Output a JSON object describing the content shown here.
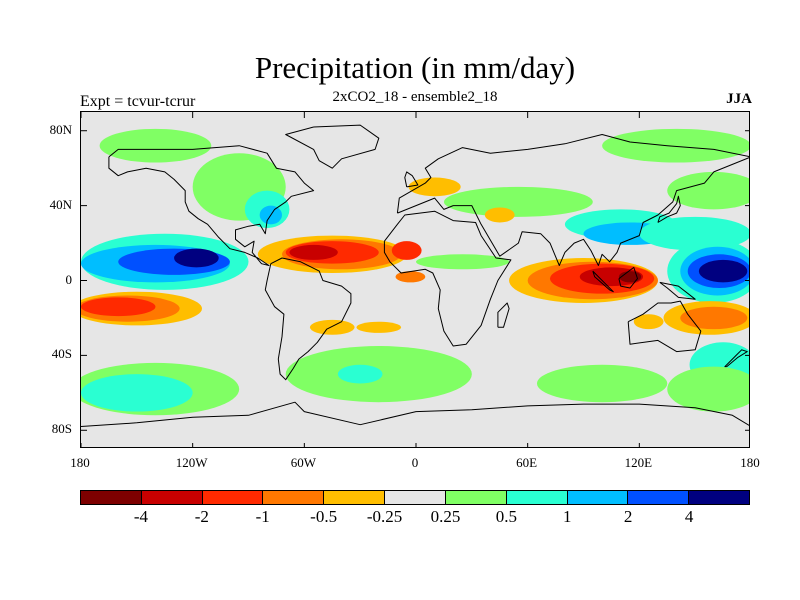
{
  "title": "Precipitation (in mm/day)",
  "subtitle": "2xCO2_18 - ensemble2_18",
  "left_label": "Expt = tcvur-tcrur",
  "season_label": "JJA",
  "y_axis": {
    "ticks": [
      "80N",
      "40N",
      "0",
      "40S",
      "80S"
    ],
    "values": [
      80,
      40,
      0,
      -40,
      -80
    ],
    "range": [
      -90,
      90
    ]
  },
  "x_axis": {
    "ticks": [
      "180",
      "120W",
      "60W",
      "0",
      "60E",
      "120E",
      "180"
    ],
    "values": [
      -180,
      -120,
      -60,
      0,
      60,
      120,
      180
    ],
    "range": [
      -180,
      180
    ]
  },
  "legend": {
    "colors": [
      "#7d0000",
      "#c80000",
      "#ff2a00",
      "#ff7800",
      "#ffbe00",
      "#e6e6e6",
      "#80ff64",
      "#2affd2",
      "#00beff",
      "#0050ff",
      "#000080"
    ],
    "labels": [
      "-4",
      "-2",
      "-1",
      "-0.5",
      "-0.25",
      "0.25",
      "0.5",
      "1",
      "2",
      "4"
    ],
    "label_values": [
      -4,
      -2,
      -1,
      -0.5,
      -0.25,
      0.25,
      0.5,
      1,
      2,
      4
    ]
  },
  "colors": {
    "background": "#e6e6e6",
    "coast": "#000000"
  },
  "regions": [
    {
      "name": "arctic-green-band",
      "lon": -140,
      "lat": 72,
      "rlon": 30,
      "rlat": 9,
      "color": "#80ff64"
    },
    {
      "name": "arctic-green-band-east",
      "lon": 140,
      "lat": 72,
      "rlon": 40,
      "rlat": 9,
      "color": "#80ff64"
    },
    {
      "name": "north-pacific-green",
      "lon": 160,
      "lat": 48,
      "rlon": 25,
      "rlat": 10,
      "color": "#80ff64"
    },
    {
      "name": "north-america-green",
      "lon": -95,
      "lat": 50,
      "rlon": 25,
      "rlat": 18,
      "color": "#80ff64"
    },
    {
      "name": "north-atlantic-cyan",
      "lon": -80,
      "lat": 38,
      "rlon": 12,
      "rlat": 10,
      "color": "#2affd2"
    },
    {
      "name": "north-atlantic-blue",
      "lon": -78,
      "lat": 35,
      "rlon": 6,
      "rlat": 5,
      "color": "#00beff"
    },
    {
      "name": "mideast-asia-green",
      "lon": 55,
      "lat": 42,
      "rlon": 40,
      "rlat": 8,
      "color": "#80ff64"
    },
    {
      "name": "europe-orange",
      "lon": 10,
      "lat": 50,
      "rlon": 14,
      "rlat": 5,
      "color": "#ffbe00"
    },
    {
      "name": "arabia-orange",
      "lon": 45,
      "lat": 35,
      "rlon": 8,
      "rlat": 4,
      "color": "#ffbe00"
    },
    {
      "name": "east-asia-cyan",
      "lon": 110,
      "lat": 30,
      "rlon": 30,
      "rlat": 8,
      "color": "#2affd2"
    },
    {
      "name": "east-asia-blue",
      "lon": 115,
      "lat": 25,
      "rlon": 25,
      "rlat": 6,
      "color": "#00beff"
    },
    {
      "name": "nw-pacific-cyan",
      "lon": 150,
      "lat": 25,
      "rlon": 30,
      "rlat": 9,
      "color": "#2affd2"
    },
    {
      "name": "pacific-itcz-cyan",
      "lon": -135,
      "lat": 10,
      "rlon": 45,
      "rlat": 15,
      "color": "#2affd2"
    },
    {
      "name": "pacific-itcz-blue",
      "lon": -140,
      "lat": 9,
      "rlon": 40,
      "rlat": 10,
      "color": "#00beff"
    },
    {
      "name": "pacific-itcz-mid",
      "lon": -130,
      "lat": 10,
      "rlon": 30,
      "rlat": 7,
      "color": "#0050ff"
    },
    {
      "name": "pacific-itcz-core",
      "lon": -118,
      "lat": 12,
      "rlon": 12,
      "rlat": 5,
      "color": "#000080"
    },
    {
      "name": "w-pacific-cyan",
      "lon": 160,
      "lat": 5,
      "rlon": 25,
      "rlat": 17,
      "color": "#2affd2"
    },
    {
      "name": "w-pacific-blue",
      "lon": 162,
      "lat": 5,
      "rlon": 20,
      "rlat": 13,
      "color": "#00beff"
    },
    {
      "name": "w-pacific-mid",
      "lon": 163,
      "lat": 5,
      "rlon": 17,
      "rlat": 9,
      "color": "#0050ff"
    },
    {
      "name": "w-pacific-core",
      "lon": 165,
      "lat": 5,
      "rlon": 13,
      "rlat": 6,
      "color": "#000080"
    },
    {
      "name": "atlantic-itcz-orange",
      "lon": -45,
      "lat": 14,
      "rlon": 40,
      "rlat": 10,
      "color": "#ffbe00"
    },
    {
      "name": "atlantic-itcz-orange2",
      "lon": -40,
      "lat": 14,
      "rlon": 32,
      "rlat": 8,
      "color": "#ff7800"
    },
    {
      "name": "atlantic-itcz-red",
      "lon": -45,
      "lat": 15,
      "rlon": 25,
      "rlat": 6,
      "color": "#ff2a00"
    },
    {
      "name": "atlantic-itcz-core",
      "lon": -55,
      "lat": 15,
      "rlon": 13,
      "rlat": 4,
      "color": "#c80000"
    },
    {
      "name": "west-africa-red",
      "lon": -5,
      "lat": 16,
      "rlon": 8,
      "rlat": 5,
      "color": "#ff2a00"
    },
    {
      "name": "gulf-guinea-orange",
      "lon": -3,
      "lat": 2,
      "rlon": 8,
      "rlat": 3,
      "color": "#ff7800"
    },
    {
      "name": "africa-green",
      "lon": 25,
      "lat": 10,
      "rlon": 25,
      "rlat": 4,
      "color": "#80ff64"
    },
    {
      "name": "indian-ocean-orange",
      "lon": 90,
      "lat": 0,
      "rlon": 40,
      "rlat": 12,
      "color": "#ffbe00"
    },
    {
      "name": "indian-ocean-orange2",
      "lon": 95,
      "lat": 0,
      "rlon": 35,
      "rlat": 10,
      "color": "#ff7800"
    },
    {
      "name": "indian-ocean-red",
      "lon": 100,
      "lat": 1,
      "rlon": 28,
      "rlat": 8,
      "color": "#ff2a00"
    },
    {
      "name": "indian-ocean-core",
      "lon": 105,
      "lat": 2,
      "rlon": 17,
      "rlat": 5,
      "color": "#c80000"
    },
    {
      "name": "maritime-core",
      "lon": 115,
      "lat": 2,
      "rlon": 6,
      "rlat": 3,
      "color": "#7d0000"
    },
    {
      "name": "sw-pacific-orange",
      "lon": 158,
      "lat": -20,
      "rlon": 25,
      "rlat": 9,
      "color": "#ffbe00"
    },
    {
      "name": "sw-pacific-red",
      "lon": 160,
      "lat": -20,
      "rlon": 18,
      "rlat": 6,
      "color": "#ff7800"
    },
    {
      "name": "australia-orange",
      "lon": 125,
      "lat": -22,
      "rlon": 8,
      "rlat": 4,
      "color": "#ffbe00"
    },
    {
      "name": "se-pacific-orange",
      "lon": -150,
      "lat": -15,
      "rlon": 35,
      "rlat": 9,
      "color": "#ffbe00"
    },
    {
      "name": "se-pacific-orange2",
      "lon": -155,
      "lat": -15,
      "rlon": 28,
      "rlat": 7,
      "color": "#ff7800"
    },
    {
      "name": "se-pacific-red",
      "lon": -160,
      "lat": -14,
      "rlon": 20,
      "rlat": 5,
      "color": "#ff2a00"
    },
    {
      "name": "south-america-orange",
      "lon": -45,
      "lat": -25,
      "rlon": 12,
      "rlat": 4,
      "color": "#ffbe00"
    },
    {
      "name": "south-atlantic-orange",
      "lon": -20,
      "lat": -25,
      "rlon": 12,
      "rlat": 3,
      "color": "#ffbe00"
    },
    {
      "name": "southern-ocean-green-w",
      "lon": -140,
      "lat": -58,
      "rlon": 45,
      "rlat": 14,
      "color": "#80ff64"
    },
    {
      "name": "southern-ocean-cyan-w",
      "lon": -150,
      "lat": -60,
      "rlon": 30,
      "rlat": 10,
      "color": "#2affd2"
    },
    {
      "name": "southern-ocean-green-m",
      "lon": -20,
      "lat": -50,
      "rlon": 50,
      "rlat": 15,
      "color": "#80ff64"
    },
    {
      "name": "southern-ocean-cyan-m",
      "lon": -30,
      "lat": -50,
      "rlon": 12,
      "rlat": 5,
      "color": "#2affd2"
    },
    {
      "name": "southern-ocean-green-e",
      "lon": 100,
      "lat": -55,
      "rlon": 35,
      "rlat": 10,
      "color": "#80ff64"
    },
    {
      "name": "southern-ocean-cyan-e",
      "lon": 165,
      "lat": -45,
      "rlon": 18,
      "rlat": 12,
      "color": "#2affd2"
    },
    {
      "name": "southern-ocean-green-e2",
      "lon": 160,
      "lat": -58,
      "rlon": 25,
      "rlat": 12,
      "color": "#80ff64"
    }
  ],
  "coastlines": [
    {
      "name": "north-america-outline",
      "points": [
        [
          -165,
          66
        ],
        [
          -160,
          70
        ],
        [
          -140,
          70
        ],
        [
          -120,
          70
        ],
        [
          -95,
          72
        ],
        [
          -80,
          68
        ],
        [
          -75,
          60
        ],
        [
          -65,
          58
        ],
        [
          -60,
          52
        ],
        [
          -55,
          48
        ],
        [
          -67,
          45
        ],
        [
          -70,
          42
        ],
        [
          -76,
          38
        ],
        [
          -80,
          32
        ],
        [
          -81,
          25
        ],
        [
          -84,
          30
        ],
        [
          -90,
          29
        ],
        [
          -97,
          27
        ],
        [
          -97,
          22
        ],
        [
          -92,
          18
        ],
        [
          -87,
          21
        ],
        [
          -88,
          15
        ],
        [
          -83,
          9
        ],
        [
          -79,
          8
        ],
        [
          -85,
          12
        ],
        [
          -92,
          15
        ],
        [
          -100,
          17
        ],
        [
          -106,
          23
        ],
        [
          -112,
          30
        ],
        [
          -117,
          33
        ],
        [
          -122,
          37
        ],
        [
          -124,
          42
        ],
        [
          -124,
          48
        ],
        [
          -130,
          54
        ],
        [
          -135,
          58
        ],
        [
          -145,
          60
        ],
        [
          -155,
          58
        ],
        [
          -160,
          56
        ],
        [
          -165,
          60
        ],
        [
          -165,
          66
        ]
      ]
    },
    {
      "name": "greenland-outline",
      "points": [
        [
          -55,
          82
        ],
        [
          -30,
          83
        ],
        [
          -20,
          76
        ],
        [
          -22,
          70
        ],
        [
          -40,
          65
        ],
        [
          -45,
          60
        ],
        [
          -52,
          64
        ],
        [
          -55,
          70
        ],
        [
          -70,
          78
        ],
        [
          -55,
          82
        ]
      ]
    },
    {
      "name": "south-america-outline",
      "points": [
        [
          -78,
          9
        ],
        [
          -72,
          12
        ],
        [
          -62,
          10
        ],
        [
          -52,
          5
        ],
        [
          -50,
          0
        ],
        [
          -40,
          -3
        ],
        [
          -35,
          -7
        ],
        [
          -35,
          -12
        ],
        [
          -40,
          -22
        ],
        [
          -48,
          -26
        ],
        [
          -53,
          -33
        ],
        [
          -58,
          -38
        ],
        [
          -63,
          -42
        ],
        [
          -66,
          -47
        ],
        [
          -70,
          -53
        ],
        [
          -73,
          -50
        ],
        [
          -74,
          -42
        ],
        [
          -72,
          -30
        ],
        [
          -71,
          -18
        ],
        [
          -76,
          -14
        ],
        [
          -81,
          -5
        ],
        [
          -80,
          0
        ],
        [
          -78,
          9
        ]
      ]
    },
    {
      "name": "africa-outline",
      "points": [
        [
          -17,
          21
        ],
        [
          -10,
          30
        ],
        [
          -6,
          35
        ],
        [
          10,
          37
        ],
        [
          20,
          32
        ],
        [
          32,
          31
        ],
        [
          35,
          24
        ],
        [
          43,
          12
        ],
        [
          51,
          11
        ],
        [
          44,
          0
        ],
        [
          40,
          -10
        ],
        [
          35,
          -24
        ],
        [
          27,
          -34
        ],
        [
          20,
          -35
        ],
        [
          15,
          -27
        ],
        [
          12,
          -15
        ],
        [
          13,
          -5
        ],
        [
          9,
          4
        ],
        [
          5,
          6
        ],
        [
          -8,
          4
        ],
        [
          -14,
          10
        ],
        [
          -17,
          15
        ],
        [
          -17,
          21
        ]
      ]
    },
    {
      "name": "eurasia-outline",
      "points": [
        [
          -10,
          36
        ],
        [
          -9,
          44
        ],
        [
          -2,
          48
        ],
        [
          5,
          52
        ],
        [
          8,
          55
        ],
        [
          5,
          60
        ],
        [
          12,
          65
        ],
        [
          25,
          71
        ],
        [
          40,
          68
        ],
        [
          60,
          70
        ],
        [
          80,
          73
        ],
        [
          100,
          78
        ],
        [
          115,
          74
        ],
        [
          135,
          72
        ],
        [
          160,
          70
        ],
        [
          180,
          66
        ],
        [
          170,
          62
        ],
        [
          160,
          58
        ],
        [
          155,
          52
        ],
        [
          140,
          48
        ],
        [
          138,
          42
        ],
        [
          130,
          35
        ],
        [
          122,
          31
        ],
        [
          120,
          24
        ],
        [
          110,
          20
        ],
        [
          108,
          15
        ],
        [
          104,
          10
        ],
        [
          100,
          14
        ],
        [
          98,
          8
        ],
        [
          94,
          16
        ],
        [
          90,
          22
        ],
        [
          85,
          20
        ],
        [
          80,
          15
        ],
        [
          77,
          8
        ],
        [
          72,
          20
        ],
        [
          67,
          25
        ],
        [
          57,
          26
        ],
        [
          55,
          20
        ],
        [
          45,
          13
        ],
        [
          35,
          30
        ],
        [
          30,
          40
        ],
        [
          20,
          40
        ],
        [
          15,
          38
        ],
        [
          10,
          44
        ],
        [
          0,
          40
        ],
        [
          -10,
          36
        ]
      ]
    },
    {
      "name": "australia-outline",
      "points": [
        [
          114,
          -22
        ],
        [
          122,
          -18
        ],
        [
          130,
          -12
        ],
        [
          137,
          -12
        ],
        [
          142,
          -11
        ],
        [
          146,
          -18
        ],
        [
          153,
          -27
        ],
        [
          150,
          -37
        ],
        [
          140,
          -38
        ],
        [
          130,
          -32
        ],
        [
          115,
          -34
        ],
        [
          114,
          -22
        ]
      ]
    },
    {
      "name": "antarctica-outline",
      "points": [
        [
          -180,
          -78
        ],
        [
          -150,
          -76
        ],
        [
          -120,
          -73
        ],
        [
          -90,
          -72
        ],
        [
          -65,
          -65
        ],
        [
          -60,
          -70
        ],
        [
          -30,
          -77
        ],
        [
          0,
          -70
        ],
        [
          30,
          -69
        ],
        [
          60,
          -67
        ],
        [
          90,
          -66
        ],
        [
          120,
          -66
        ],
        [
          150,
          -68
        ],
        [
          170,
          -72
        ],
        [
          180,
          -78
        ]
      ]
    },
    {
      "name": "madagascar-outline",
      "points": [
        [
          44,
          -25
        ],
        [
          47,
          -25
        ],
        [
          50,
          -15
        ],
        [
          49,
          -12
        ],
        [
          44,
          -17
        ],
        [
          44,
          -25
        ]
      ]
    },
    {
      "name": "new-zealand-outline",
      "points": [
        [
          167,
          -46
        ],
        [
          173,
          -41
        ],
        [
          178,
          -38
        ],
        [
          175,
          -37
        ],
        [
          172,
          -40
        ],
        [
          166,
          -46
        ],
        [
          167,
          -46
        ]
      ]
    },
    {
      "name": "japan-outline",
      "points": [
        [
          130,
          31
        ],
        [
          135,
          34
        ],
        [
          140,
          36
        ],
        [
          142,
          40
        ],
        [
          141,
          45
        ],
        [
          140,
          41
        ],
        [
          136,
          36
        ],
        [
          131,
          34
        ],
        [
          130,
          31
        ]
      ]
    },
    {
      "name": "uk-outline",
      "points": [
        [
          -5,
          50
        ],
        [
          1,
          51
        ],
        [
          -2,
          56
        ],
        [
          -5,
          58
        ],
        [
          -6,
          55
        ],
        [
          -5,
          50
        ]
      ]
    },
    {
      "name": "borneo-outline",
      "points": [
        [
          109,
          1
        ],
        [
          117,
          7
        ],
        [
          119,
          1
        ],
        [
          115,
          -4
        ],
        [
          110,
          -3
        ],
        [
          109,
          1
        ]
      ]
    },
    {
      "name": "sumatra-outline",
      "points": [
        [
          95,
          5
        ],
        [
          106,
          -6
        ],
        [
          104,
          -5
        ],
        [
          96,
          2
        ],
        [
          95,
          5
        ]
      ]
    },
    {
      "name": "new-guinea-outline",
      "points": [
        [
          131,
          -1
        ],
        [
          141,
          -3
        ],
        [
          150,
          -10
        ],
        [
          141,
          -9
        ],
        [
          135,
          -4
        ],
        [
          131,
          -1
        ]
      ]
    }
  ]
}
